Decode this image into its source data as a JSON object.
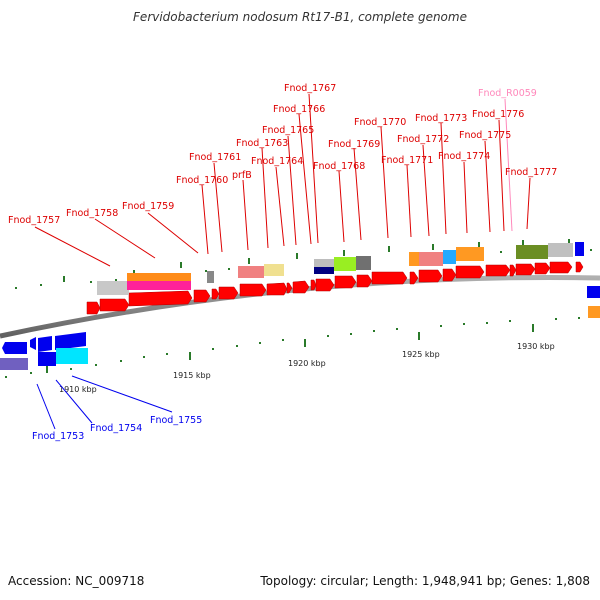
{
  "title": "Fervidobacterium nodosum Rt17-B1, complete genome",
  "footer": {
    "accession": "Accession: NC_009718",
    "summary": "Topology: circular; Length: 1,948,941 bp; Genes: 1,808"
  },
  "colors": {
    "forward": "#ff0000",
    "reverse": "#0000ee",
    "rna": "#ff88bb",
    "backbone": "#808080",
    "tick": "#2a7a2a"
  },
  "scale": {
    "ticks": [
      "1910 kbp",
      "1915 kbp",
      "1920 kbp",
      "1925 kbp",
      "1930 kbp"
    ]
  },
  "forward_labels": [
    "Fnod_1757",
    "Fnod_1758",
    "Fnod_1759",
    "Fnod_1760",
    "Fnod_1761",
    "prfB",
    "Fnod_1763",
    "Fnod_1764",
    "Fnod_1765",
    "Fnod_1766",
    "Fnod_1767",
    "Fnod_1768",
    "Fnod_1769",
    "Fnod_1770",
    "Fnod_1771",
    "Fnod_1772",
    "Fnod_1773",
    "Fnod_1774",
    "Fnod_1775",
    "Fnod_1776",
    "Fnod_R0059",
    "Fnod_1777"
  ],
  "reverse_labels": [
    "Fnod_1753",
    "Fnod_1754",
    "Fnod_1755"
  ]
}
